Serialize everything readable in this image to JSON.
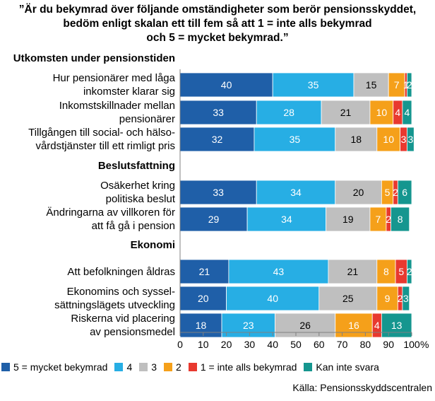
{
  "title": "”Är du bekymrad över följande omständigheter som berör pensionsskyddet,\nbedöm enligt skalan ett till fem så att 1 = inte alls bekymrad\noch 5 = mycket bekymrad.”",
  "source": "Källa: Pensionsskyddscentralen",
  "chart_data": {
    "type": "bar",
    "orientation": "horizontal",
    "stacked": true,
    "unit": "%",
    "xlim": [
      0,
      100
    ],
    "xticks": [
      0,
      10,
      20,
      30,
      40,
      50,
      60,
      70,
      80,
      90,
      100
    ],
    "xtick_suffix": "%",
    "grid": false,
    "legend_position": "bottom",
    "series": [
      {
        "name": "5 = mycket bekymrad",
        "color": "#1f5fa8"
      },
      {
        "name": "4",
        "color": "#27aee4"
      },
      {
        "name": "3",
        "color": "#bfbfbf"
      },
      {
        "name": "2",
        "color": "#f5a01a"
      },
      {
        "name": "1 = inte alls bekymrad",
        "color": "#e8392f"
      },
      {
        "name": "Kan inte svara",
        "color": "#15968f"
      }
    ],
    "groups": [
      {
        "label": "Utkomsten under pensionstiden",
        "rows": [
          {
            "label": [
              "Hur pensionärer med låga",
              "inkomster klarar sig"
            ],
            "values": [
              40,
              35,
              15,
              7,
              1,
              2
            ]
          },
          {
            "label": [
              "Inkomstskillnader mellan",
              "pensionärer"
            ],
            "values": [
              33,
              28,
              21,
              10,
              4,
              4
            ]
          },
          {
            "label": [
              "Tillgången till social- och hälso-",
              "vårdstjänster till ett rimligt pris"
            ],
            "values": [
              32,
              35,
              18,
              10,
              3,
              3
            ]
          }
        ]
      },
      {
        "label": "Beslutsfattning",
        "rows": [
          {
            "label": [
              "Osäkerhet kring",
              "politiska beslut"
            ],
            "values": [
              33,
              34,
              20,
              5,
              2,
              6
            ]
          },
          {
            "label": [
              "Ändringarna av villkoren för",
              "att få gå i pension"
            ],
            "values": [
              29,
              34,
              19,
              7,
              2,
              8
            ]
          }
        ]
      },
      {
        "label": "Ekonomi",
        "rows": [
          {
            "label": [
              "Att befolkningen åldras"
            ],
            "values": [
              21,
              43,
              21,
              8,
              5,
              2
            ]
          },
          {
            "label": [
              "Ekonomins och syssel-",
              "sättningslägets utveckling"
            ],
            "values": [
              20,
              40,
              25,
              9,
              2,
              3
            ]
          },
          {
            "label": [
              "Riskerna vid placering",
              "av pensionsmedel"
            ],
            "values": [
              18,
              23,
              26,
              16,
              4,
              13
            ]
          }
        ]
      }
    ]
  }
}
